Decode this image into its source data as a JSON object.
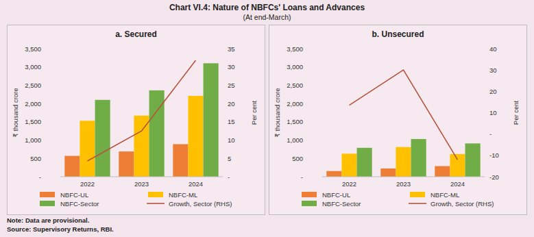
{
  "header": {
    "title": "Chart VI.4: Nature of NBFCs' Loans and Advances",
    "subtitle": "(At end-March)"
  },
  "footer": {
    "note": "Note: Data are provisional.",
    "source": "Source: Supervisory Returns, RBI."
  },
  "chart_data": [
    {
      "type": "bar",
      "title": "a. Secured",
      "categories": [
        "2022",
        "2023",
        "2024"
      ],
      "y_label": "₹ thousand crore",
      "y2_label": "Per cent",
      "ylim": [
        0,
        3500
      ],
      "yticks": [
        {
          "value": 0,
          "label": "-"
        },
        500,
        {
          "value": 1000,
          "label": "1,000"
        },
        {
          "value": 1500,
          "label": "1,500"
        },
        {
          "value": 2000,
          "label": "2,000"
        },
        {
          "value": 2500,
          "label": "2,500"
        },
        {
          "value": 3000,
          "label": "3,000"
        },
        {
          "value": 3500,
          "label": "3,500"
        }
      ],
      "y2lim": [
        0,
        35
      ],
      "y2ticks": [
        {
          "value": 0,
          "label": "-"
        },
        5,
        10,
        15,
        20,
        25,
        30,
        35
      ],
      "legend": "bottom",
      "series": [
        {
          "name": "NBFC-UL",
          "color": "#ee7d35",
          "values": [
            570,
            690,
            890
          ]
        },
        {
          "name": "NBFC-ML",
          "color": "#ffc000",
          "values": [
            1530,
            1670,
            2210
          ]
        },
        {
          "name": "NBFC-Sector",
          "color": "#70ad47",
          "values": [
            2100,
            2360,
            3100
          ]
        },
        {
          "name": "Growth, Sector (RHS)",
          "type": "line",
          "axis": "y2",
          "color": "#b5533c",
          "values": [
            4.3,
            12.5,
            31.8
          ]
        }
      ]
    },
    {
      "type": "bar",
      "title": "b. Unsecured",
      "categories": [
        "2022",
        "2023",
        "2024"
      ],
      "y_label": "₹ thousand crore",
      "y2_label": "Per cent",
      "ylim": [
        0,
        3500
      ],
      "yticks": [
        {
          "value": 0,
          "label": "-"
        },
        500,
        {
          "value": 1000,
          "label": "1,000"
        },
        {
          "value": 1500,
          "label": "1,500"
        },
        {
          "value": 2000,
          "label": "2,000"
        },
        {
          "value": 2500,
          "label": "2,500"
        },
        {
          "value": 3000,
          "label": "3,000"
        },
        {
          "value": 3500,
          "label": "3,500"
        }
      ],
      "y2lim": [
        -20,
        40
      ],
      "y2ticks": [
        -20,
        -10,
        {
          "value": 0,
          "label": "-"
        },
        10,
        20,
        30,
        40
      ],
      "legend": "bottom",
      "series": [
        {
          "name": "NBFC-UL",
          "color": "#ee7d35",
          "values": [
            155,
            225,
            290
          ]
        },
        {
          "name": "NBFC-ML",
          "color": "#ffc000",
          "values": [
            630,
            810,
            620
          ]
        },
        {
          "name": "NBFC-Sector",
          "color": "#70ad47",
          "values": [
            790,
            1030,
            910
          ]
        },
        {
          "name": "Growth, Sector (RHS)",
          "type": "line",
          "axis": "y2",
          "color": "#b5533c",
          "values": [
            13.5,
            30,
            -12
          ]
        }
      ]
    }
  ]
}
